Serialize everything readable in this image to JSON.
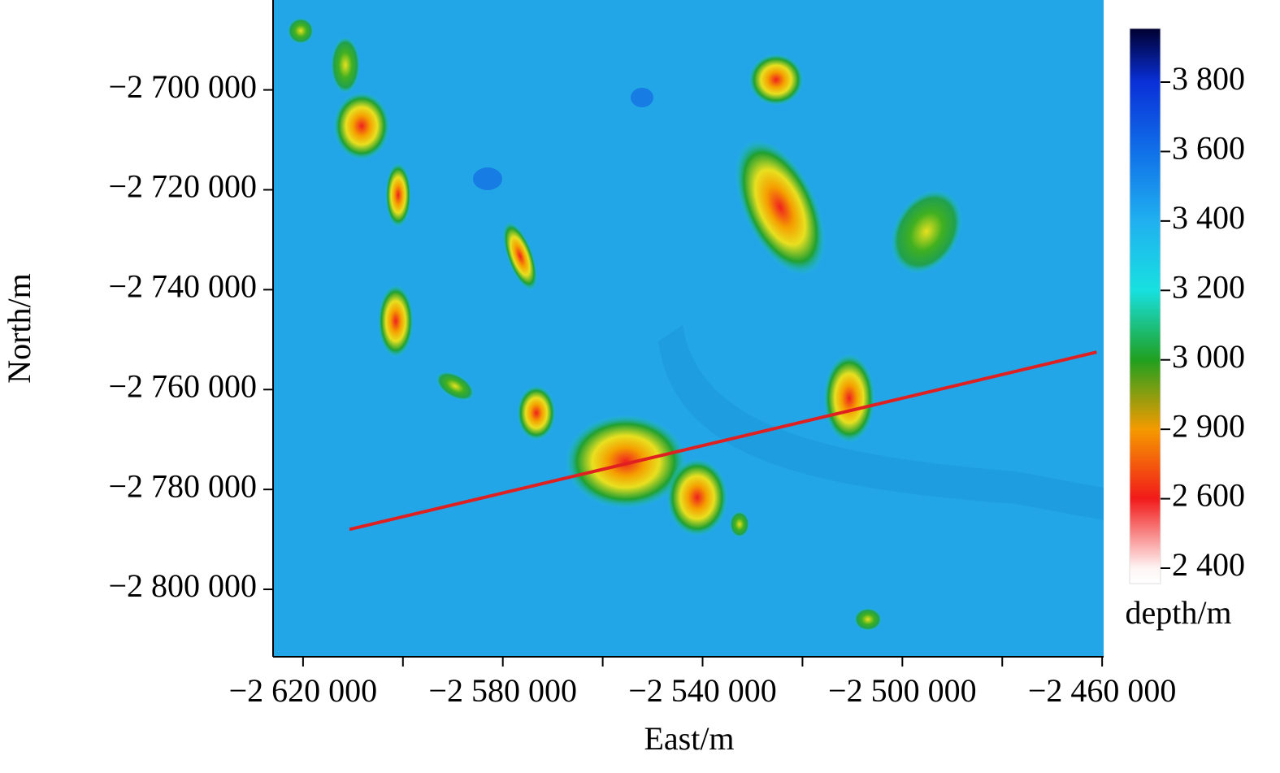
{
  "chart_data": {
    "type": "heatmap",
    "x_label": "East/m",
    "y_label": "North/m",
    "xlim": [
      -2626000,
      -2459700
    ],
    "ylim": [
      -2813500,
      -2682000
    ],
    "xticks": [
      {
        "value": -2620000,
        "label": "−2 620 000"
      },
      {
        "value": -2580000,
        "label": "−2 580 000"
      },
      {
        "value": -2540000,
        "label": "−2 540 000"
      },
      {
        "value": -2500000,
        "label": "−2 500 000"
      },
      {
        "value": -2460000,
        "label": "−2 460 000"
      }
    ],
    "xticks_minor": [
      -2600000,
      -2560000,
      -2520000,
      -2480000
    ],
    "yticks": [
      {
        "value": -2700000,
        "label": "−2 700 000"
      },
      {
        "value": -2720000,
        "label": "−2 720 000"
      },
      {
        "value": -2740000,
        "label": "−2 740 000"
      },
      {
        "value": -2760000,
        "label": "−2 760 000"
      },
      {
        "value": -2780000,
        "label": "−2 780 000"
      },
      {
        "value": -2800000,
        "label": "−2 800 000"
      }
    ],
    "profile_line": {
      "color": "#e02020",
      "x": [
        -2610700,
        -2461100
      ],
      "y": [
        -2788000,
        -2752500
      ]
    },
    "colorbar": {
      "label": "depth/m",
      "ticks": [
        {
          "value": 2400,
          "label": "2 400"
        },
        {
          "value": 2600,
          "label": "2 600"
        },
        {
          "value": 2900,
          "label": "2 900"
        },
        {
          "value": 3000,
          "label": "3 000"
        },
        {
          "value": 3200,
          "label": "3 200"
        },
        {
          "value": 3400,
          "label": "3 400"
        },
        {
          "value": 3600,
          "label": "3 600"
        },
        {
          "value": 3800,
          "label": "3 800"
        }
      ],
      "colors": [
        "#fff4f4",
        "#f21a1a",
        "#f59a00",
        "#20a020",
        "#18e0e0",
        "#20b0f0",
        "#1070e8",
        "#0a30d8"
      ],
      "bottom_color": "#ffffff",
      "top_color": "#000030"
    }
  }
}
